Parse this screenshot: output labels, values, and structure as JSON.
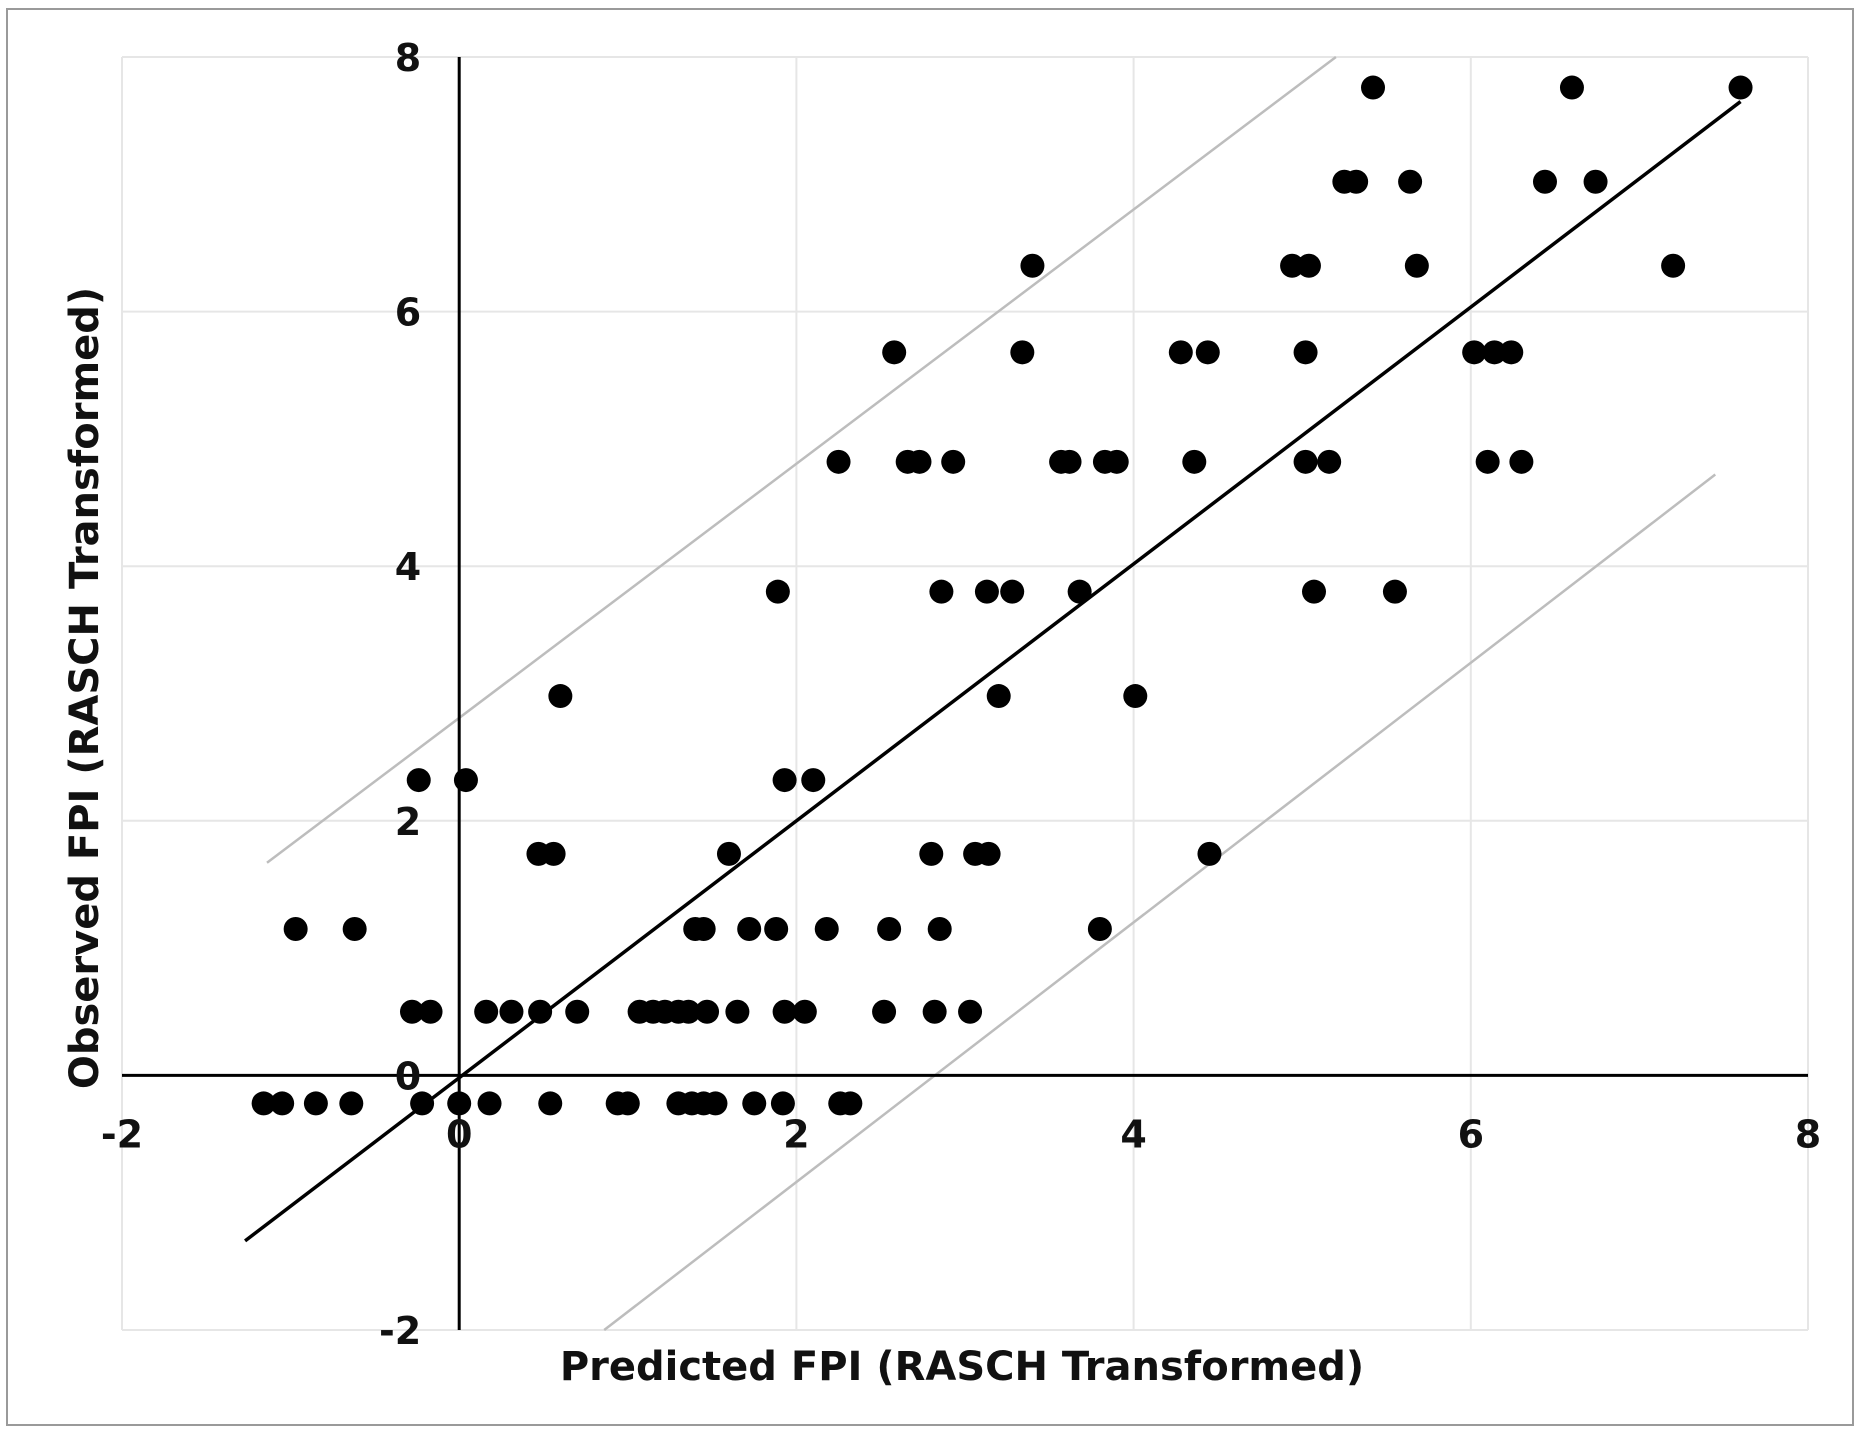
{
  "chart_data": {
    "type": "scatter",
    "title": "",
    "xlabel": "Predicted FPI (RASCH Transformed)",
    "ylabel": "Observed FPI (RASCH Transformed)",
    "xlim": [
      -2,
      8
    ],
    "ylim": [
      -2,
      8
    ],
    "xticks": [
      -2,
      0,
      2,
      4,
      6,
      8
    ],
    "yticks": [
      -2,
      0,
      2,
      4,
      6,
      8
    ],
    "grid": true,
    "legend": "none",
    "colors": {
      "points": "#000000",
      "fit_line": "#000000",
      "band_lines": "#bdbdbd",
      "grid": "#e6e6e6"
    },
    "fit_line": {
      "x": [
        -1.27,
        7.6
      ],
      "y": [
        -1.3,
        7.65
      ]
    },
    "band_upper": {
      "x": [
        -1.14,
        5.2
      ],
      "y": [
        1.67,
        8.0
      ]
    },
    "band_lower": {
      "x": [
        0.86,
        7.45
      ],
      "y": [
        -2.0,
        4.72
      ]
    },
    "points": [
      {
        "x": -1.16,
        "y": -0.22
      },
      {
        "x": -1.05,
        "y": -0.22
      },
      {
        "x": -0.85,
        "y": -0.22
      },
      {
        "x": -0.64,
        "y": -0.22
      },
      {
        "x": -0.22,
        "y": -0.22
      },
      {
        "x": 0.0,
        "y": -0.22
      },
      {
        "x": 0.18,
        "y": -0.22
      },
      {
        "x": 0.54,
        "y": -0.22
      },
      {
        "x": 0.94,
        "y": -0.22
      },
      {
        "x": 1.0,
        "y": -0.22
      },
      {
        "x": 1.3,
        "y": -0.22
      },
      {
        "x": 1.38,
        "y": -0.22
      },
      {
        "x": 1.45,
        "y": -0.22
      },
      {
        "x": 1.52,
        "y": -0.22
      },
      {
        "x": 1.75,
        "y": -0.22
      },
      {
        "x": 1.92,
        "y": -0.22
      },
      {
        "x": 2.26,
        "y": -0.22
      },
      {
        "x": 2.32,
        "y": -0.22
      },
      {
        "x": -0.28,
        "y": 0.5
      },
      {
        "x": -0.17,
        "y": 0.5
      },
      {
        "x": 0.16,
        "y": 0.5
      },
      {
        "x": 0.31,
        "y": 0.5
      },
      {
        "x": 0.48,
        "y": 0.5
      },
      {
        "x": 0.7,
        "y": 0.5
      },
      {
        "x": 1.07,
        "y": 0.5
      },
      {
        "x": 1.15,
        "y": 0.5
      },
      {
        "x": 1.22,
        "y": 0.5
      },
      {
        "x": 1.3,
        "y": 0.5
      },
      {
        "x": 1.36,
        "y": 0.5
      },
      {
        "x": 1.47,
        "y": 0.5
      },
      {
        "x": 1.65,
        "y": 0.5
      },
      {
        "x": 1.93,
        "y": 0.5
      },
      {
        "x": 2.05,
        "y": 0.5
      },
      {
        "x": 2.52,
        "y": 0.5
      },
      {
        "x": 2.82,
        "y": 0.5
      },
      {
        "x": 3.03,
        "y": 0.5
      },
      {
        "x": -0.97,
        "y": 1.15
      },
      {
        "x": -0.62,
        "y": 1.15
      },
      {
        "x": 1.4,
        "y": 1.15
      },
      {
        "x": 1.45,
        "y": 1.15
      },
      {
        "x": 1.72,
        "y": 1.15
      },
      {
        "x": 1.88,
        "y": 1.15
      },
      {
        "x": 2.18,
        "y": 1.15
      },
      {
        "x": 2.55,
        "y": 1.15
      },
      {
        "x": 2.85,
        "y": 1.15
      },
      {
        "x": 3.8,
        "y": 1.15
      },
      {
        "x": 0.47,
        "y": 1.74
      },
      {
        "x": 0.56,
        "y": 1.74
      },
      {
        "x": 1.6,
        "y": 1.74
      },
      {
        "x": 2.8,
        "y": 1.74
      },
      {
        "x": 3.06,
        "y": 1.74
      },
      {
        "x": 3.14,
        "y": 1.74
      },
      {
        "x": 4.45,
        "y": 1.74
      },
      {
        "x": -0.24,
        "y": 2.32
      },
      {
        "x": 0.04,
        "y": 2.32
      },
      {
        "x": 1.93,
        "y": 2.32
      },
      {
        "x": 2.1,
        "y": 2.32
      },
      {
        "x": 0.6,
        "y": 2.98
      },
      {
        "x": 3.2,
        "y": 2.98
      },
      {
        "x": 4.01,
        "y": 2.98
      },
      {
        "x": 1.89,
        "y": 3.8
      },
      {
        "x": 2.86,
        "y": 3.8
      },
      {
        "x": 3.13,
        "y": 3.8
      },
      {
        "x": 3.28,
        "y": 3.8
      },
      {
        "x": 3.68,
        "y": 3.8
      },
      {
        "x": 5.07,
        "y": 3.8
      },
      {
        "x": 5.55,
        "y": 3.8
      },
      {
        "x": 2.25,
        "y": 4.82
      },
      {
        "x": 2.66,
        "y": 4.82
      },
      {
        "x": 2.73,
        "y": 4.82
      },
      {
        "x": 2.93,
        "y": 4.82
      },
      {
        "x": 3.57,
        "y": 4.82
      },
      {
        "x": 3.62,
        "y": 4.82
      },
      {
        "x": 3.83,
        "y": 4.82
      },
      {
        "x": 3.9,
        "y": 4.82
      },
      {
        "x": 4.36,
        "y": 4.82
      },
      {
        "x": 5.02,
        "y": 4.82
      },
      {
        "x": 5.16,
        "y": 4.82
      },
      {
        "x": 6.1,
        "y": 4.82
      },
      {
        "x": 6.3,
        "y": 4.82
      },
      {
        "x": 2.58,
        "y": 5.68
      },
      {
        "x": 3.34,
        "y": 5.68
      },
      {
        "x": 4.28,
        "y": 5.68
      },
      {
        "x": 4.44,
        "y": 5.68
      },
      {
        "x": 5.02,
        "y": 5.68
      },
      {
        "x": 6.02,
        "y": 5.68
      },
      {
        "x": 6.14,
        "y": 5.68
      },
      {
        "x": 6.24,
        "y": 5.68
      },
      {
        "x": 3.4,
        "y": 6.36
      },
      {
        "x": 4.94,
        "y": 6.36
      },
      {
        "x": 5.04,
        "y": 6.36
      },
      {
        "x": 5.68,
        "y": 6.36
      },
      {
        "x": 7.2,
        "y": 6.36
      },
      {
        "x": 5.25,
        "y": 7.02
      },
      {
        "x": 5.32,
        "y": 7.02
      },
      {
        "x": 5.64,
        "y": 7.02
      },
      {
        "x": 6.44,
        "y": 7.02
      },
      {
        "x": 6.74,
        "y": 7.02
      },
      {
        "x": 5.42,
        "y": 7.76
      },
      {
        "x": 6.6,
        "y": 7.76
      },
      {
        "x": 7.6,
        "y": 7.76
      }
    ]
  }
}
